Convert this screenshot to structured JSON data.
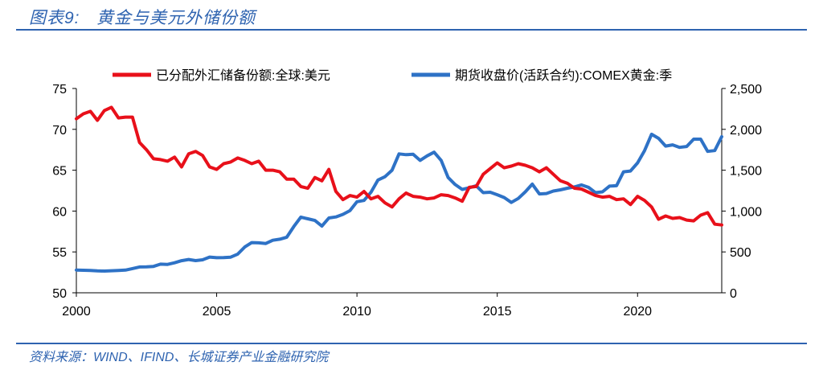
{
  "figure": {
    "title": "图表9:   黄金与美元外储份额",
    "source": "资料来源：WIND、IFIND、长城证券产业金融研究院"
  },
  "colors": {
    "series_red": "#E8101A",
    "series_blue": "#2E72C6",
    "accent": "#2E63B0"
  },
  "chart_data": {
    "type": "line",
    "xlim": [
      2000,
      2023
    ],
    "x_ticks": [
      2000,
      2005,
      2010,
      2015,
      2020
    ],
    "x_tick_labels": [
      "2000",
      "2005",
      "2010",
      "2015",
      "2020"
    ],
    "y_left": {
      "lim": [
        50,
        75
      ],
      "ticks": [
        50,
        55,
        60,
        65,
        70,
        75
      ],
      "tick_labels": [
        "50",
        "55",
        "60",
        "65",
        "70",
        "75"
      ]
    },
    "y_right": {
      "lim": [
        0,
        2500
      ],
      "ticks": [
        0,
        500,
        1000,
        1500,
        2000,
        2500
      ],
      "tick_labels": [
        "0",
        "500",
        "1,000",
        "1,500",
        "2,000",
        "2,500"
      ]
    },
    "grid": false,
    "legend_position": "top",
    "series": [
      {
        "name": "已分配外汇储备份额:全球:美元",
        "axis": "left",
        "color": "#E8101A",
        "x": [
          2000,
          2000.25,
          2000.5,
          2000.75,
          2001,
          2001.25,
          2001.5,
          2001.75,
          2002,
          2002.25,
          2002.5,
          2002.75,
          2003,
          2003.25,
          2003.5,
          2003.75,
          2004,
          2004.25,
          2004.5,
          2004.75,
          2005,
          2005.25,
          2005.5,
          2005.75,
          2006,
          2006.25,
          2006.5,
          2006.75,
          2007,
          2007.25,
          2007.5,
          2007.75,
          2008,
          2008.25,
          2008.5,
          2008.75,
          2009,
          2009.25,
          2009.5,
          2009.75,
          2010,
          2010.25,
          2010.5,
          2010.75,
          2011,
          2011.25,
          2011.5,
          2011.75,
          2012,
          2012.25,
          2012.5,
          2012.75,
          2013,
          2013.25,
          2013.5,
          2013.75,
          2014,
          2014.25,
          2014.5,
          2014.75,
          2015,
          2015.25,
          2015.5,
          2015.75,
          2016,
          2016.25,
          2016.5,
          2016.75,
          2017,
          2017.25,
          2017.5,
          2017.75,
          2018,
          2018.25,
          2018.5,
          2018.75,
          2019,
          2019.25,
          2019.5,
          2019.75,
          2020,
          2020.25,
          2020.5,
          2020.75,
          2021,
          2021.25,
          2021.5,
          2021.75,
          2022,
          2022.25,
          2022.5,
          2022.75,
          2023
        ],
        "values": [
          71.3,
          71.9,
          72.2,
          71.1,
          72.3,
          72.7,
          71.4,
          71.5,
          71.5,
          68.4,
          67.5,
          66.4,
          66.3,
          66.1,
          66.6,
          65.4,
          67.0,
          67.3,
          66.8,
          65.4,
          65.1,
          65.8,
          66.0,
          66.5,
          66.2,
          65.8,
          66.1,
          65.0,
          65.0,
          64.8,
          63.9,
          63.9,
          63.0,
          62.8,
          64.1,
          63.7,
          65.1,
          62.4,
          61.4,
          61.9,
          61.7,
          62.4,
          61.5,
          61.8,
          61.0,
          60.5,
          61.5,
          62.2,
          61.8,
          61.7,
          61.5,
          61.6,
          62.0,
          61.9,
          61.6,
          61.2,
          62.9,
          63.0,
          64.5,
          65.2,
          65.9,
          65.3,
          65.5,
          65.8,
          65.6,
          65.3,
          64.8,
          65.3,
          64.5,
          63.7,
          63.4,
          62.8,
          62.7,
          62.3,
          61.9,
          61.7,
          61.8,
          61.4,
          61.5,
          60.8,
          61.8,
          61.3,
          60.5,
          59.0,
          59.4,
          59.1,
          59.2,
          58.9,
          58.8,
          59.5,
          59.8,
          58.4,
          58.3
        ]
      },
      {
        "name": "期货收盘价(活跃合约):COMEX黄金:季",
        "axis": "right",
        "color": "#2E72C6",
        "x": [
          2000,
          2000.25,
          2000.5,
          2000.75,
          2001,
          2001.25,
          2001.5,
          2001.75,
          2002,
          2002.25,
          2002.5,
          2002.75,
          2003,
          2003.25,
          2003.5,
          2003.75,
          2004,
          2004.25,
          2004.5,
          2004.75,
          2005,
          2005.25,
          2005.5,
          2005.75,
          2006,
          2006.25,
          2006.5,
          2006.75,
          2007,
          2007.25,
          2007.5,
          2007.75,
          2008,
          2008.25,
          2008.5,
          2008.75,
          2009,
          2009.25,
          2009.5,
          2009.75,
          2010,
          2010.25,
          2010.5,
          2010.75,
          2011,
          2011.25,
          2011.5,
          2011.75,
          2012,
          2012.25,
          2012.5,
          2012.75,
          2013,
          2013.25,
          2013.5,
          2013.75,
          2014,
          2014.25,
          2014.5,
          2014.75,
          2015,
          2015.25,
          2015.5,
          2015.75,
          2016,
          2016.25,
          2016.5,
          2016.75,
          2017,
          2017.25,
          2017.5,
          2017.75,
          2018,
          2018.25,
          2018.5,
          2018.75,
          2019,
          2019.25,
          2019.5,
          2019.75,
          2020,
          2020.25,
          2020.5,
          2020.75,
          2021,
          2021.25,
          2021.5,
          2021.75,
          2022,
          2022.25,
          2022.5,
          2022.75,
          2023
        ],
        "values": [
          279,
          276,
          273,
          268,
          266,
          270,
          274,
          278,
          296,
          316,
          318,
          323,
          350,
          347,
          367,
          393,
          407,
          394,
          404,
          437,
          429,
          431,
          436,
          473,
          560,
          614,
          611,
          603,
          643,
          656,
          680,
          811,
          926,
          906,
          885,
          816,
          915,
          928,
          960,
          1005,
          1114,
          1130,
          1230,
          1380,
          1420,
          1500,
          1700,
          1690,
          1695,
          1620,
          1675,
          1720,
          1620,
          1410,
          1325,
          1265,
          1285,
          1310,
          1225,
          1230,
          1200,
          1165,
          1105,
          1155,
          1235,
          1330,
          1210,
          1215,
          1245,
          1260,
          1280,
          1295,
          1320,
          1290,
          1225,
          1235,
          1305,
          1310,
          1480,
          1490,
          1590,
          1740,
          1940,
          1890,
          1795,
          1810,
          1780,
          1790,
          1880,
          1880,
          1730,
          1740,
          1910
        ]
      }
    ]
  }
}
